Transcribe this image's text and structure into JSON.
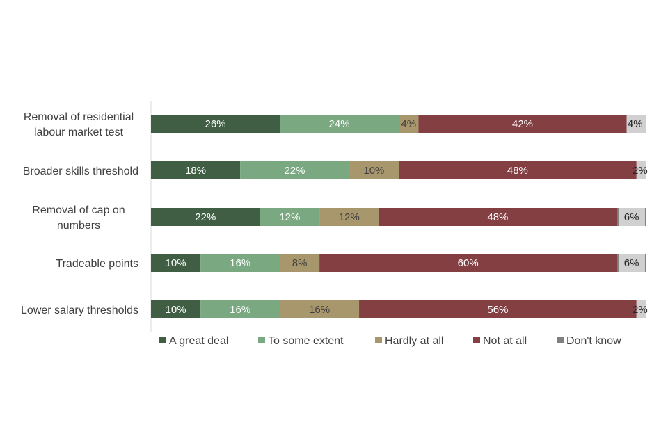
{
  "chart_data": {
    "type": "bar",
    "orientation": "horizontal",
    "stacked": true,
    "title": "",
    "xlabel": "",
    "ylabel": "",
    "categories": [
      [
        "Removal of residential",
        "labour market test"
      ],
      [
        "Broader skills threshold"
      ],
      [
        "Removal of cap on",
        "numbers"
      ],
      [
        "Tradeable points"
      ],
      [
        "Lower salary thresholds"
      ]
    ],
    "series": [
      {
        "name": "A great deal",
        "color": "#3f5e44",
        "label_color": "#ffffff",
        "values": [
          26,
          18,
          22,
          10,
          10
        ]
      },
      {
        "name": "To some extent",
        "color": "#7aa881",
        "label_color": "#ffffff",
        "values": [
          24,
          22,
          12,
          16,
          16
        ]
      },
      {
        "name": "Hardly at all",
        "color": "#a8976c",
        "label_color": "#404040",
        "values": [
          4,
          10,
          12,
          8,
          16
        ]
      },
      {
        "name": "Not at all",
        "color": "#843f43",
        "label_color": "#ffffff",
        "values": [
          42,
          48,
          48,
          60,
          56
        ]
      },
      {
        "name": "Don't know",
        "color": "#808080",
        "label_color": "#262626",
        "values": [
          4,
          2,
          6,
          6,
          2
        ]
      }
    ],
    "data_labels": [
      [
        "26%",
        "24%",
        "4%",
        "42%",
        "4%"
      ],
      [
        "18%",
        "22%",
        "10%",
        "48%",
        "2%"
      ],
      [
        "22%",
        "12%",
        "12%",
        "48%",
        "6%"
      ],
      [
        "10%",
        "16%",
        "8%",
        "60%",
        "6%"
      ],
      [
        "10%",
        "16%",
        "16%",
        "56%",
        "2%"
      ]
    ],
    "legend_position": "bottom",
    "grid": false
  }
}
